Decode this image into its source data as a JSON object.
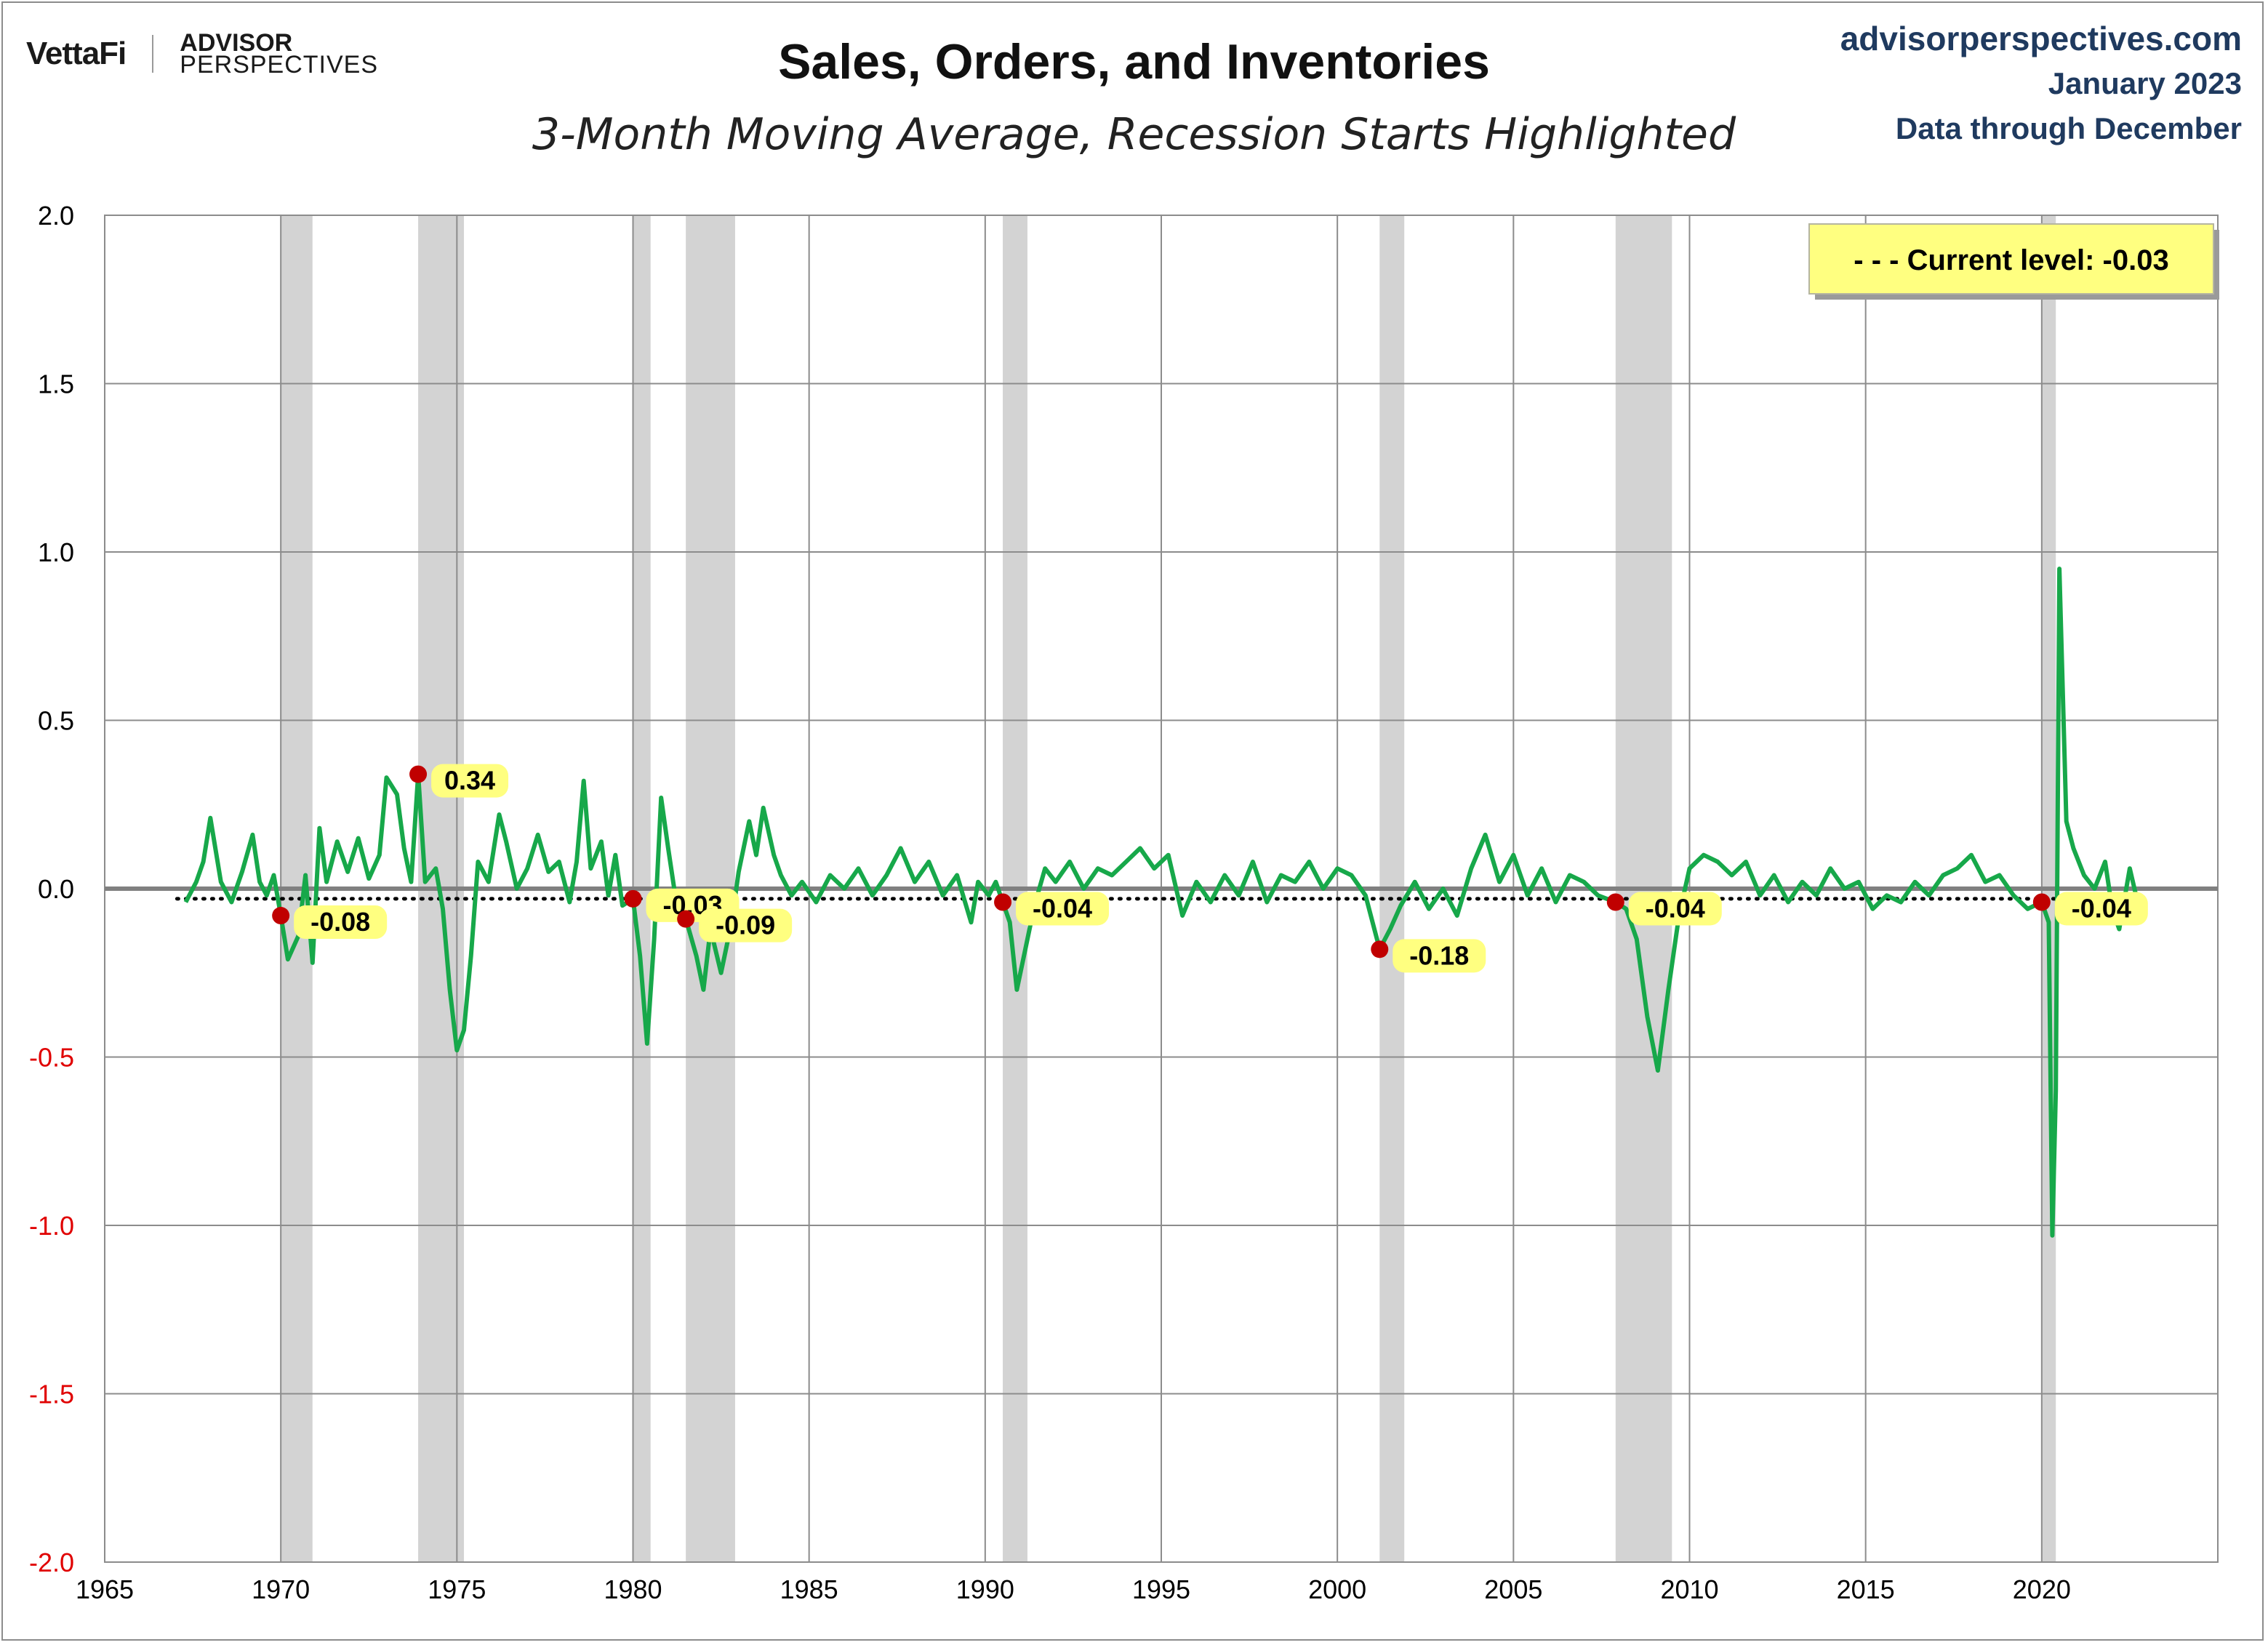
{
  "header": {
    "brand_vettafi": "VettaFi",
    "brand_ap_line1": "ADVISOR",
    "brand_ap_line2": "PERSPECTIVES",
    "source": "advisorperspectives.com",
    "date": "January 2023",
    "data_through": "Data through December"
  },
  "colors": {
    "series": "#17a84a",
    "recession": "#d3d3d3",
    "marker": "#c00000",
    "label_bg": "#ffff80",
    "negative_tick": "#e00000",
    "zero_line": "#808080",
    "grid": "#8c8c8c"
  },
  "chart_data": {
    "type": "line",
    "title": "Sales, Orders, and Inventories",
    "subtitle": "3-Month Moving Average, Recession Starts Highlighted",
    "xlim": [
      1965,
      2025
    ],
    "ylim": [
      -2.0,
      2.0
    ],
    "x_ticks": [
      1965,
      1970,
      1975,
      1980,
      1985,
      1990,
      1995,
      2000,
      2005,
      2010,
      2015,
      2020
    ],
    "y_ticks": [
      "-2.0",
      "-1.5",
      "-1.0",
      "-0.5",
      "0.0",
      "0.5",
      "1.0",
      "1.5",
      "2.0"
    ],
    "grid": true,
    "legend": {
      "text": "- - -  Current level:  -0.03",
      "placement": "top-right"
    },
    "current_level": -0.03,
    "recessions": [
      [
        1970.0,
        1970.9
      ],
      [
        1973.9,
        1975.2
      ],
      [
        1980.0,
        1980.5
      ],
      [
        1981.5,
        1982.9
      ],
      [
        1990.5,
        1991.2
      ],
      [
        2001.2,
        2001.9
      ],
      [
        2007.9,
        2009.5
      ],
      [
        2020.0,
        2020.4
      ]
    ],
    "recession_start_markers": [
      {
        "x": 1970.0,
        "y": -0.08,
        "label": "-0.08"
      },
      {
        "x": 1973.9,
        "y": 0.34,
        "label": "0.34"
      },
      {
        "x": 1980.0,
        "y": -0.03,
        "label": "-0.03"
      },
      {
        "x": 1981.5,
        "y": -0.09,
        "label": "-0.09"
      },
      {
        "x": 1990.5,
        "y": -0.04,
        "label": "-0.04"
      },
      {
        "x": 2001.2,
        "y": -0.18,
        "label": "-0.18"
      },
      {
        "x": 2007.9,
        "y": -0.04,
        "label": "-0.04"
      },
      {
        "x": 2020.0,
        "y": -0.04,
        "label": "-0.04"
      }
    ],
    "series": [
      {
        "values": [
          [
            1967.3,
            -0.04
          ],
          [
            1967.6,
            0.02
          ],
          [
            1967.8,
            0.08
          ],
          [
            1968.0,
            0.21
          ],
          [
            1968.3,
            0.02
          ],
          [
            1968.6,
            -0.04
          ],
          [
            1968.9,
            0.05
          ],
          [
            1969.2,
            0.16
          ],
          [
            1969.4,
            0.02
          ],
          [
            1969.6,
            -0.02
          ],
          [
            1969.8,
            0.04
          ],
          [
            1970.0,
            -0.08
          ],
          [
            1970.2,
            -0.21
          ],
          [
            1970.5,
            -0.14
          ],
          [
            1970.7,
            0.04
          ],
          [
            1970.9,
            -0.22
          ],
          [
            1971.1,
            0.18
          ],
          [
            1971.3,
            0.02
          ],
          [
            1971.6,
            0.14
          ],
          [
            1971.9,
            0.05
          ],
          [
            1972.2,
            0.15
          ],
          [
            1972.5,
            0.03
          ],
          [
            1972.8,
            0.1
          ],
          [
            1973.0,
            0.33
          ],
          [
            1973.3,
            0.28
          ],
          [
            1973.5,
            0.12
          ],
          [
            1973.7,
            0.02
          ],
          [
            1973.9,
            0.34
          ],
          [
            1974.1,
            0.02
          ],
          [
            1974.4,
            0.06
          ],
          [
            1974.6,
            -0.06
          ],
          [
            1974.8,
            -0.3
          ],
          [
            1975.0,
            -0.48
          ],
          [
            1975.2,
            -0.42
          ],
          [
            1975.4,
            -0.2
          ],
          [
            1975.6,
            0.08
          ],
          [
            1975.9,
            0.02
          ],
          [
            1976.2,
            0.22
          ],
          [
            1976.4,
            0.14
          ],
          [
            1976.7,
            0.0
          ],
          [
            1977.0,
            0.06
          ],
          [
            1977.3,
            0.16
          ],
          [
            1977.6,
            0.05
          ],
          [
            1977.9,
            0.08
          ],
          [
            1978.2,
            -0.04
          ],
          [
            1978.4,
            0.08
          ],
          [
            1978.6,
            0.32
          ],
          [
            1978.8,
            0.06
          ],
          [
            1979.1,
            0.14
          ],
          [
            1979.3,
            -0.02
          ],
          [
            1979.5,
            0.1
          ],
          [
            1979.7,
            -0.05
          ],
          [
            1980.0,
            -0.03
          ],
          [
            1980.2,
            -0.2
          ],
          [
            1980.4,
            -0.46
          ],
          [
            1980.6,
            -0.15
          ],
          [
            1980.8,
            0.27
          ],
          [
            1981.0,
            0.12
          ],
          [
            1981.2,
            -0.02
          ],
          [
            1981.5,
            -0.09
          ],
          [
            1981.8,
            -0.2
          ],
          [
            1982.0,
            -0.3
          ],
          [
            1982.2,
            -0.12
          ],
          [
            1982.5,
            -0.25
          ],
          [
            1982.8,
            -0.1
          ],
          [
            1983.0,
            0.05
          ],
          [
            1983.3,
            0.2
          ],
          [
            1983.5,
            0.1
          ],
          [
            1983.7,
            0.24
          ],
          [
            1984.0,
            0.1
          ],
          [
            1984.2,
            0.04
          ],
          [
            1984.5,
            -0.02
          ],
          [
            1984.8,
            0.02
          ],
          [
            1985.2,
            -0.04
          ],
          [
            1985.6,
            0.04
          ],
          [
            1986.0,
            0.0
          ],
          [
            1986.4,
            0.06
          ],
          [
            1986.8,
            -0.02
          ],
          [
            1987.2,
            0.04
          ],
          [
            1987.6,
            0.12
          ],
          [
            1988.0,
            0.02
          ],
          [
            1988.4,
            0.08
          ],
          [
            1988.8,
            -0.02
          ],
          [
            1989.2,
            0.04
          ],
          [
            1989.6,
            -0.1
          ],
          [
            1989.8,
            0.02
          ],
          [
            1990.1,
            -0.02
          ],
          [
            1990.3,
            0.02
          ],
          [
            1990.5,
            -0.04
          ],
          [
            1990.7,
            -0.1
          ],
          [
            1990.9,
            -0.3
          ],
          [
            1991.1,
            -0.2
          ],
          [
            1991.4,
            -0.05
          ],
          [
            1991.7,
            0.06
          ],
          [
            1992.0,
            0.02
          ],
          [
            1992.4,
            0.08
          ],
          [
            1992.8,
            0.0
          ],
          [
            1993.2,
            0.06
          ],
          [
            1993.6,
            0.04
          ],
          [
            1994.0,
            0.08
          ],
          [
            1994.4,
            0.12
          ],
          [
            1994.8,
            0.06
          ],
          [
            1995.2,
            0.1
          ],
          [
            1995.6,
            -0.08
          ],
          [
            1996.0,
            0.02
          ],
          [
            1996.4,
            -0.04
          ],
          [
            1996.8,
            0.04
          ],
          [
            1997.2,
            -0.02
          ],
          [
            1997.6,
            0.08
          ],
          [
            1998.0,
            -0.04
          ],
          [
            1998.4,
            0.04
          ],
          [
            1998.8,
            0.02
          ],
          [
            1999.2,
            0.08
          ],
          [
            1999.6,
            0.0
          ],
          [
            2000.0,
            0.06
          ],
          [
            2000.4,
            0.04
          ],
          [
            2000.8,
            -0.02
          ],
          [
            2001.2,
            -0.18
          ],
          [
            2001.5,
            -0.12
          ],
          [
            2001.8,
            -0.05
          ],
          [
            2002.2,
            0.02
          ],
          [
            2002.6,
            -0.06
          ],
          [
            2003.0,
            0.0
          ],
          [
            2003.4,
            -0.08
          ],
          [
            2003.8,
            0.06
          ],
          [
            2004.2,
            0.16
          ],
          [
            2004.6,
            0.02
          ],
          [
            2005.0,
            0.1
          ],
          [
            2005.4,
            -0.02
          ],
          [
            2005.8,
            0.06
          ],
          [
            2006.2,
            -0.04
          ],
          [
            2006.6,
            0.04
          ],
          [
            2007.0,
            0.02
          ],
          [
            2007.4,
            -0.02
          ],
          [
            2007.9,
            -0.04
          ],
          [
            2008.2,
            -0.06
          ],
          [
            2008.5,
            -0.15
          ],
          [
            2008.8,
            -0.38
          ],
          [
            2009.1,
            -0.54
          ],
          [
            2009.4,
            -0.3
          ],
          [
            2009.7,
            -0.08
          ],
          [
            2010.0,
            0.06
          ],
          [
            2010.4,
            0.1
          ],
          [
            2010.8,
            0.08
          ],
          [
            2011.2,
            0.04
          ],
          [
            2011.6,
            0.08
          ],
          [
            2012.0,
            -0.02
          ],
          [
            2012.4,
            0.04
          ],
          [
            2012.8,
            -0.04
          ],
          [
            2013.2,
            0.02
          ],
          [
            2013.6,
            -0.02
          ],
          [
            2014.0,
            0.06
          ],
          [
            2014.4,
            0.0
          ],
          [
            2014.8,
            0.02
          ],
          [
            2015.2,
            -0.06
          ],
          [
            2015.6,
            -0.02
          ],
          [
            2016.0,
            -0.04
          ],
          [
            2016.4,
            0.02
          ],
          [
            2016.8,
            -0.02
          ],
          [
            2017.2,
            0.04
          ],
          [
            2017.6,
            0.06
          ],
          [
            2018.0,
            0.1
          ],
          [
            2018.4,
            0.02
          ],
          [
            2018.8,
            0.04
          ],
          [
            2019.2,
            -0.02
          ],
          [
            2019.6,
            -0.06
          ],
          [
            2020.0,
            -0.04
          ],
          [
            2020.2,
            -0.1
          ],
          [
            2020.3,
            -1.03
          ],
          [
            2020.4,
            -0.6
          ],
          [
            2020.5,
            0.95
          ],
          [
            2020.7,
            0.2
          ],
          [
            2020.9,
            0.12
          ],
          [
            2021.2,
            0.04
          ],
          [
            2021.5,
            0.0
          ],
          [
            2021.8,
            0.08
          ],
          [
            2022.0,
            -0.06
          ],
          [
            2022.2,
            -0.12
          ],
          [
            2022.5,
            0.06
          ],
          [
            2022.7,
            -0.03
          ]
        ]
      }
    ]
  }
}
